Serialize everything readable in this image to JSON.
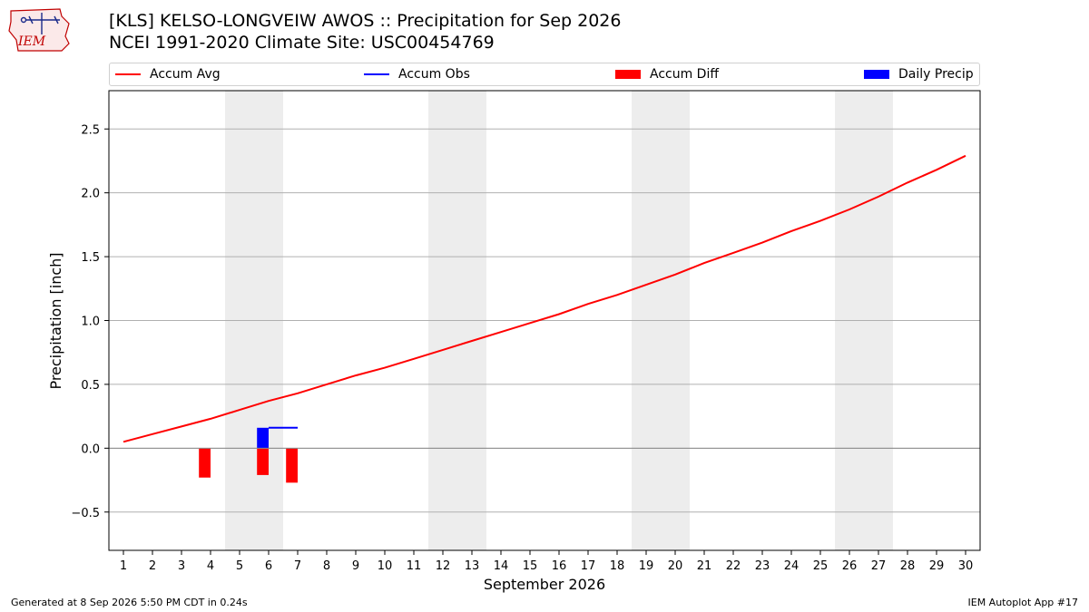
{
  "header": {
    "title_line1": "[KLS] KELSO-LONGVEIW AWOS :: Precipitation for Sep 2026",
    "title_line2": "NCEI 1991-2020 Climate Site: USC00454769"
  },
  "logo": {
    "text": "IEM",
    "icon": "iem-state-logo"
  },
  "footer": {
    "generated": "Generated at 8 Sep 2026 5:50 PM CDT in 0.24s",
    "app": "IEM Autoplot App #17"
  },
  "colors": {
    "avg": "#ff0000",
    "obs": "#0000ff",
    "diff": "#ff0000",
    "daily": "#0000ff",
    "weekend_shade": "#ededed",
    "grid": "#b0b0b0"
  },
  "chart_data": {
    "type": "line",
    "title": "[KLS] KELSO-LONGVEIW AWOS :: Precipitation for Sep 2026",
    "subtitle": "NCEI 1991-2020 Climate Site: USC00454769",
    "xlabel": "September 2026",
    "ylabel": "Precipitation [inch]",
    "ylim": [
      -0.8,
      2.8
    ],
    "yticks": [
      -0.5,
      0.0,
      0.5,
      1.0,
      1.5,
      2.0,
      2.5
    ],
    "ytick_labels": [
      "−0.5",
      "0.0",
      "0.5",
      "1.0",
      "1.5",
      "2.0",
      "2.5"
    ],
    "x": [
      1,
      2,
      3,
      4,
      5,
      6,
      7,
      8,
      9,
      10,
      11,
      12,
      13,
      14,
      15,
      16,
      17,
      18,
      19,
      20,
      21,
      22,
      23,
      24,
      25,
      26,
      27,
      28,
      29,
      30
    ],
    "xtick_labels": [
      "1",
      "2",
      "3",
      "4",
      "5",
      "6",
      "7",
      "8",
      "9",
      "10",
      "11",
      "12",
      "13",
      "14",
      "15",
      "16",
      "17",
      "18",
      "19",
      "20",
      "21",
      "22",
      "23",
      "24",
      "25",
      "26",
      "27",
      "28",
      "29",
      "30"
    ],
    "grid": "horizontal",
    "legend": {
      "position": "top",
      "entries": [
        "Accum Avg",
        "Accum Obs",
        "Accum Diff",
        "Daily Precip"
      ]
    },
    "weekend_days": [
      [
        5,
        6
      ],
      [
        12,
        13
      ],
      [
        19,
        20
      ],
      [
        26,
        27
      ]
    ],
    "series": [
      {
        "name": "Accum Avg",
        "kind": "line",
        "values": [
          0.05,
          0.11,
          0.17,
          0.23,
          0.3,
          0.37,
          0.43,
          0.5,
          0.57,
          0.63,
          0.7,
          0.77,
          0.84,
          0.91,
          0.98,
          1.05,
          1.13,
          1.2,
          1.28,
          1.36,
          1.45,
          1.53,
          1.61,
          1.7,
          1.78,
          1.87,
          1.97,
          2.08,
          2.18,
          2.29
        ]
      },
      {
        "name": "Accum Obs",
        "kind": "step",
        "x": [
          6,
          7
        ],
        "values": [
          0.16,
          0.16
        ]
      },
      {
        "name": "Accum Diff",
        "kind": "bar",
        "x": [
          4,
          6,
          7
        ],
        "values": [
          -0.23,
          -0.21,
          -0.27
        ]
      },
      {
        "name": "Daily Precip",
        "kind": "bar",
        "x": [
          6
        ],
        "values": [
          0.16
        ]
      }
    ]
  }
}
